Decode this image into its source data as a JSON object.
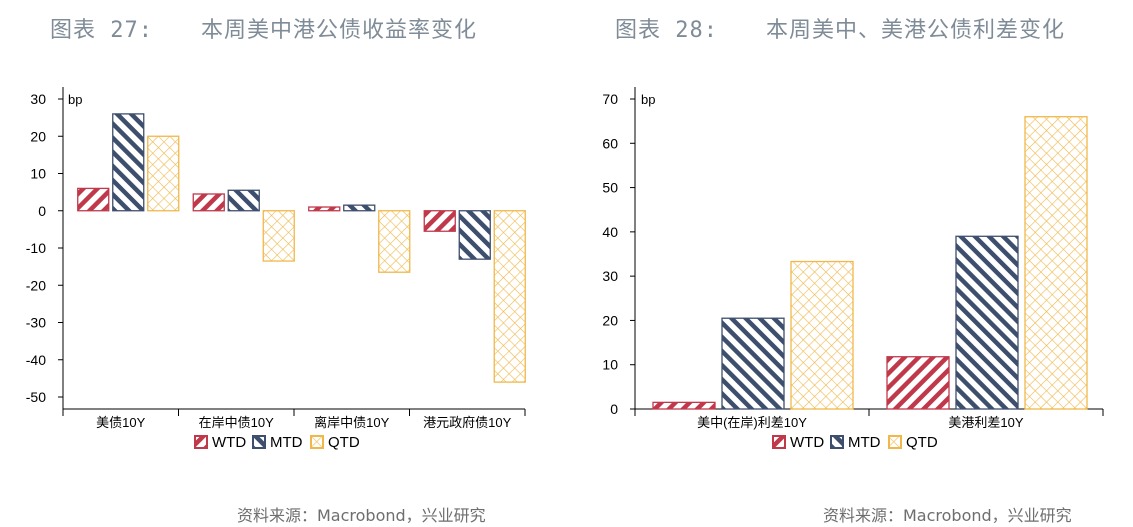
{
  "left": {
    "fig_label": "图表 27:",
    "title": "本周美中港公债收益率变化",
    "source": "资料来源：Macrobond，兴业研究"
  },
  "right": {
    "fig_label": "图表 28:",
    "title": "本周美中、美港公债利差变化",
    "source": "资料来源：Macrobond，兴业研究"
  },
  "colors": {
    "WTD": "#c0394b",
    "MTD": "#3e4f6e",
    "QTD": "#f0b84a"
  },
  "chart_data": [
    {
      "type": "bar",
      "ylabel": "bp",
      "ylim": [
        -50,
        30
      ],
      "yticks": [
        30,
        20,
        10,
        0,
        -10,
        -20,
        -30,
        -40,
        -50
      ],
      "categories": [
        "美债10Y",
        "在岸中债10Y",
        "离岸中债10Y",
        "港元政府债10Y"
      ],
      "series": [
        {
          "name": "WTD",
          "values": [
            6,
            4.5,
            1,
            -5.5
          ]
        },
        {
          "name": "MTD",
          "values": [
            26,
            5.5,
            1.5,
            -13
          ]
        },
        {
          "name": "QTD",
          "values": [
            20,
            -13.5,
            -16.5,
            -46
          ]
        }
      ],
      "legend": "bottom"
    },
    {
      "type": "bar",
      "ylabel": "bp",
      "ylim": [
        0,
        70
      ],
      "yticks": [
        70,
        60,
        50,
        40,
        30,
        20,
        10,
        0
      ],
      "categories": [
        "美中(在岸)利差10Y",
        "美港利差10Y"
      ],
      "series": [
        {
          "name": "WTD",
          "values": [
            1.5,
            11.8
          ]
        },
        {
          "name": "MTD",
          "values": [
            20.5,
            39
          ]
        },
        {
          "name": "QTD",
          "values": [
            33.3,
            66
          ]
        }
      ],
      "legend": "bottom"
    }
  ]
}
